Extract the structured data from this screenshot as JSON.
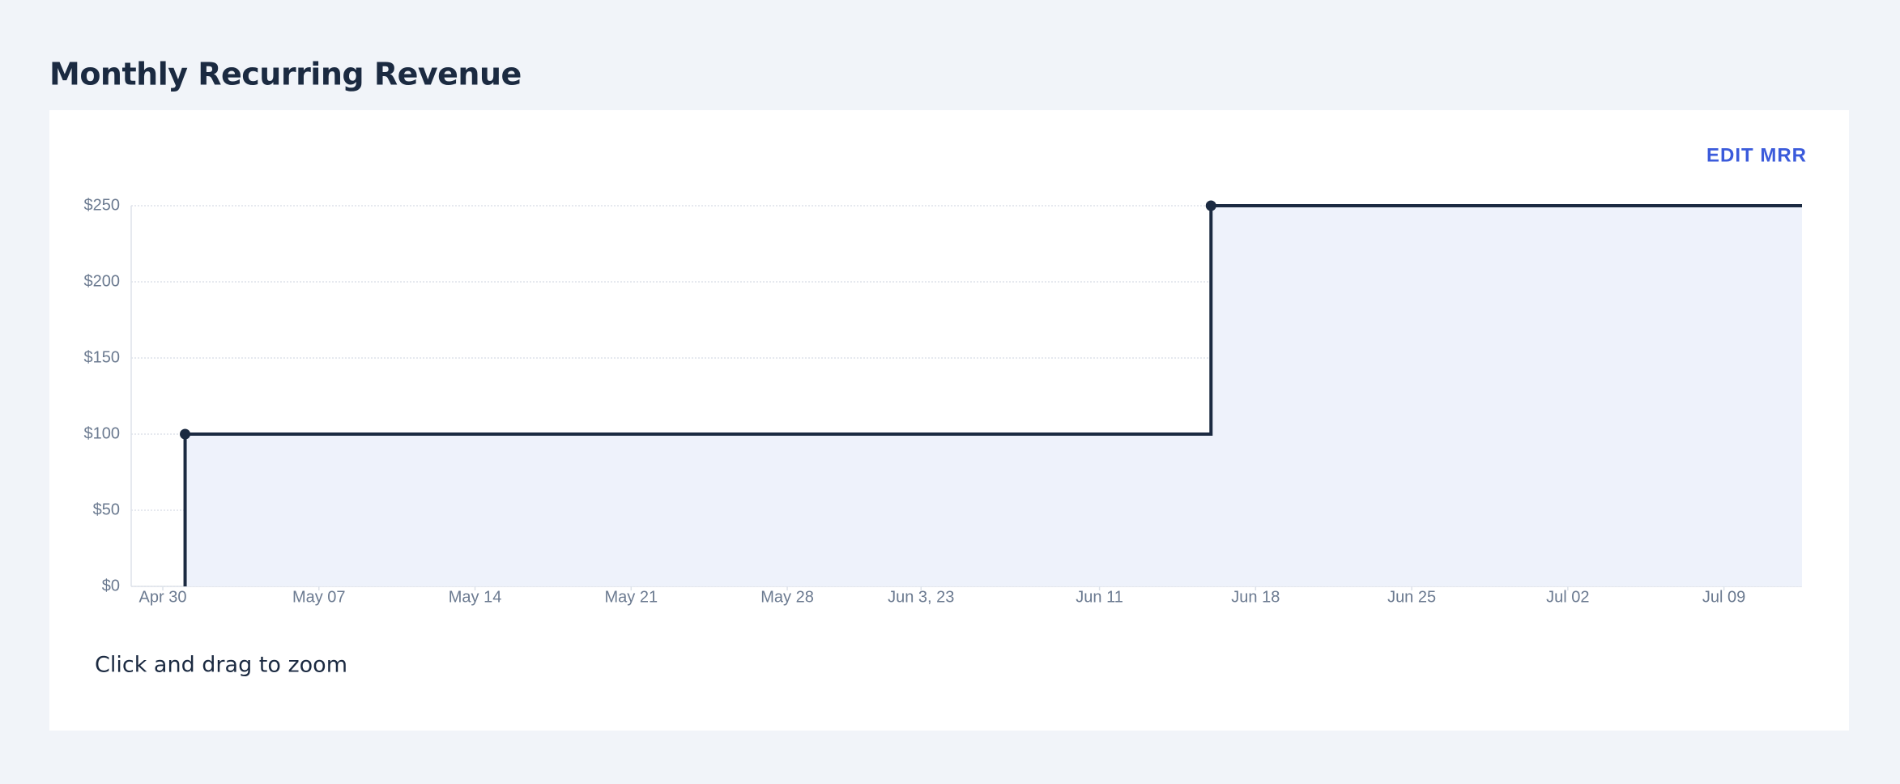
{
  "title": "Monthly Recurring Revenue",
  "edit_button": "EDIT MRR",
  "hint": "Click and drag to zoom",
  "chart_data": {
    "type": "line",
    "step": true,
    "color": "#1b2a41",
    "fill": "#eef2fb",
    "grid": true,
    "x": [
      "2023-05-01",
      "2023-06-16"
    ],
    "values": [
      100,
      250
    ],
    "xlim": [
      "2023-04-28T14:00:00Z",
      "2023-07-12T12:00:00Z"
    ],
    "xticks": [
      {
        "value": "2023-04-30",
        "label": "Apr 30"
      },
      {
        "value": "2023-05-07",
        "label": "May 07"
      },
      {
        "value": "2023-05-14",
        "label": "May 14"
      },
      {
        "value": "2023-05-21",
        "label": "May 21"
      },
      {
        "value": "2023-05-28",
        "label": "May 28"
      },
      {
        "value": "2023-06-03",
        "label": "Jun 3, 23"
      },
      {
        "value": "2023-06-11",
        "label": "Jun 11"
      },
      {
        "value": "2023-06-18",
        "label": "Jun 18"
      },
      {
        "value": "2023-06-25",
        "label": "Jun 25"
      },
      {
        "value": "2023-07-02",
        "label": "Jul 02"
      },
      {
        "value": "2023-07-09",
        "label": "Jul 09"
      }
    ],
    "ylim": [
      0,
      250
    ],
    "yticks": [
      {
        "value": 0,
        "label": "$0"
      },
      {
        "value": 50,
        "label": "$50"
      },
      {
        "value": 100,
        "label": "$100"
      },
      {
        "value": 150,
        "label": "$150"
      },
      {
        "value": 200,
        "label": "$200"
      },
      {
        "value": 250,
        "label": "$250"
      }
    ]
  }
}
